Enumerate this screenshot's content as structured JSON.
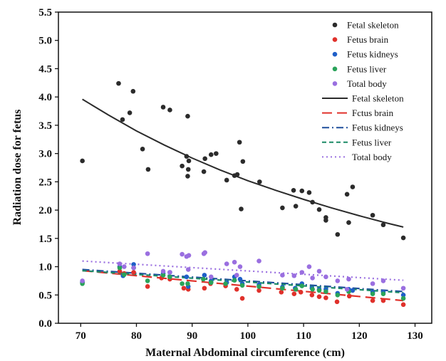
{
  "chart_data": {
    "type": "scatter",
    "xlabel": "Maternal Abdominal circumference (cm)",
    "ylabel": "Radiation dose for fetus",
    "xlim": [
      66,
      133
    ],
    "ylim": [
      0,
      5.5
    ],
    "xticks": [
      70,
      80,
      90,
      100,
      110,
      120,
      130
    ],
    "yticks": [
      0.0,
      0.5,
      1.0,
      1.5,
      2.0,
      2.5,
      3.0,
      3.5,
      4.0,
      4.5,
      5.0,
      5.5
    ],
    "legend_position": "top-right",
    "grid": false,
    "series": [
      {
        "name": "Fetal skeleton",
        "kind": "scatter",
        "color": "#2b2b2b",
        "points": [
          [
            70.3,
            2.87
          ],
          [
            76.8,
            4.24
          ],
          [
            77.5,
            3.6
          ],
          [
            78.8,
            3.72
          ],
          [
            79.4,
            4.1
          ],
          [
            81.1,
            3.08
          ],
          [
            82.1,
            2.72
          ],
          [
            84.8,
            3.82
          ],
          [
            86.0,
            3.77
          ],
          [
            88.2,
            2.78
          ],
          [
            89.0,
            2.95
          ],
          [
            89.2,
            2.6
          ],
          [
            89.2,
            3.66
          ],
          [
            89.3,
            2.72
          ],
          [
            89.4,
            2.87
          ],
          [
            92.1,
            2.68
          ],
          [
            92.3,
            2.91
          ],
          [
            93.4,
            2.98
          ],
          [
            94.3,
            3.0
          ],
          [
            96.2,
            2.53
          ],
          [
            97.6,
            2.61
          ],
          [
            98.1,
            2.63
          ],
          [
            98.5,
            3.2
          ],
          [
            98.8,
            2.02
          ],
          [
            99.1,
            2.86
          ],
          [
            102.1,
            2.5
          ],
          [
            106.2,
            2.04
          ],
          [
            108.2,
            2.35
          ],
          [
            108.6,
            2.07
          ],
          [
            109.7,
            2.34
          ],
          [
            111.0,
            2.31
          ],
          [
            111.6,
            2.14
          ],
          [
            112.8,
            2.01
          ],
          [
            114.0,
            1.87
          ],
          [
            114.0,
            1.82
          ],
          [
            116.1,
            1.57
          ],
          [
            117.8,
            2.28
          ],
          [
            118.1,
            1.78
          ],
          [
            118.8,
            2.41
          ],
          [
            122.4,
            1.91
          ],
          [
            124.3,
            1.74
          ],
          [
            127.9,
            1.51
          ]
        ]
      },
      {
        "name": "Fetus brain",
        "kind": "scatter",
        "color": "#e0312b",
        "points": [
          [
            70.3,
            0.72
          ],
          [
            77.0,
            0.92
          ],
          [
            77.8,
            0.88
          ],
          [
            79.5,
            0.9
          ],
          [
            82.0,
            0.65
          ],
          [
            84.5,
            0.8
          ],
          [
            86.0,
            0.78
          ],
          [
            88.5,
            0.62
          ],
          [
            89.3,
            0.6
          ],
          [
            92.2,
            0.62
          ],
          [
            93.3,
            0.7
          ],
          [
            96.0,
            0.66
          ],
          [
            98.0,
            0.6
          ],
          [
            99.0,
            0.44
          ],
          [
            102.0,
            0.58
          ],
          [
            106.0,
            0.55
          ],
          [
            108.3,
            0.52
          ],
          [
            109.5,
            0.55
          ],
          [
            111.5,
            0.5
          ],
          [
            112.8,
            0.47
          ],
          [
            114.0,
            0.45
          ],
          [
            116.0,
            0.38
          ],
          [
            118.2,
            0.48
          ],
          [
            122.4,
            0.4
          ],
          [
            124.3,
            0.4
          ],
          [
            127.9,
            0.33
          ]
        ]
      },
      {
        "name": "Fetus kidneys",
        "kind": "scatter",
        "color": "#1f5fc8",
        "points": [
          [
            70.3,
            0.73
          ],
          [
            77.0,
            1.0
          ],
          [
            77.6,
            0.84
          ],
          [
            79.5,
            1.04
          ],
          [
            84.8,
            0.88
          ],
          [
            86.0,
            0.9
          ],
          [
            89.0,
            0.82
          ],
          [
            89.3,
            0.65
          ],
          [
            92.2,
            0.85
          ],
          [
            93.4,
            0.75
          ],
          [
            96.2,
            0.72
          ],
          [
            97.6,
            0.82
          ],
          [
            98.6,
            0.78
          ],
          [
            99.0,
            0.7
          ],
          [
            102.0,
            0.68
          ],
          [
            106.2,
            0.64
          ],
          [
            108.5,
            0.62
          ],
          [
            109.7,
            0.7
          ],
          [
            111.5,
            0.62
          ],
          [
            112.8,
            0.6
          ],
          [
            114.0,
            0.6
          ],
          [
            116.1,
            0.53
          ],
          [
            118.1,
            0.6
          ],
          [
            118.8,
            0.58
          ],
          [
            122.4,
            0.55
          ],
          [
            124.3,
            0.55
          ],
          [
            127.9,
            0.5
          ]
        ]
      },
      {
        "name": "Fetus liver",
        "kind": "scatter",
        "color": "#2aa35a",
        "points": [
          [
            70.3,
            0.7
          ],
          [
            77.0,
            0.98
          ],
          [
            77.8,
            0.86
          ],
          [
            79.5,
            0.98
          ],
          [
            82.0,
            0.75
          ],
          [
            84.8,
            0.85
          ],
          [
            86.0,
            0.82
          ],
          [
            88.2,
            0.7
          ],
          [
            89.2,
            0.7
          ],
          [
            92.0,
            0.78
          ],
          [
            93.4,
            0.72
          ],
          [
            96.0,
            0.7
          ],
          [
            97.6,
            0.76
          ],
          [
            99.0,
            0.67
          ],
          [
            102.0,
            0.65
          ],
          [
            106.2,
            0.62
          ],
          [
            108.6,
            0.6
          ],
          [
            109.7,
            0.66
          ],
          [
            111.6,
            0.6
          ],
          [
            112.8,
            0.58
          ],
          [
            114.0,
            0.56
          ],
          [
            116.1,
            0.5
          ],
          [
            118.1,
            0.56
          ],
          [
            122.4,
            0.52
          ],
          [
            124.3,
            0.52
          ],
          [
            127.9,
            0.44
          ]
        ]
      },
      {
        "name": "Total body",
        "kind": "scatter",
        "color": "#9a6fe0",
        "points": [
          [
            70.3,
            0.75
          ],
          [
            77.0,
            1.05
          ],
          [
            77.8,
            1.0
          ],
          [
            79.5,
            0.98
          ],
          [
            82.0,
            1.23
          ],
          [
            84.8,
            0.92
          ],
          [
            86.0,
            0.9
          ],
          [
            88.2,
            1.22
          ],
          [
            89.0,
            1.18
          ],
          [
            89.4,
            1.2
          ],
          [
            89.3,
            0.95
          ],
          [
            92.1,
            1.23
          ],
          [
            92.3,
            1.25
          ],
          [
            93.4,
            0.82
          ],
          [
            96.2,
            1.05
          ],
          [
            97.6,
            1.08
          ],
          [
            98.0,
            0.85
          ],
          [
            98.6,
            1.0
          ],
          [
            102.0,
            1.1
          ],
          [
            106.2,
            0.85
          ],
          [
            108.3,
            0.84
          ],
          [
            109.7,
            0.9
          ],
          [
            111.0,
            1.0
          ],
          [
            111.6,
            0.8
          ],
          [
            112.8,
            0.92
          ],
          [
            114.0,
            0.82
          ],
          [
            116.1,
            0.75
          ],
          [
            117.8,
            0.6
          ],
          [
            118.1,
            0.78
          ],
          [
            122.4,
            0.7
          ],
          [
            124.3,
            0.75
          ],
          [
            127.9,
            0.62
          ]
        ]
      },
      {
        "name": "Fetal skeleton",
        "kind": "fit",
        "color": "#2b2b2b",
        "dash": "solid",
        "x": [
          70.3,
          75,
          80,
          85,
          90,
          95,
          100,
          105,
          110,
          115,
          120,
          125,
          127.9
        ],
        "y": [
          3.96,
          3.68,
          3.4,
          3.15,
          2.92,
          2.71,
          2.52,
          2.35,
          2.19,
          2.04,
          1.9,
          1.77,
          1.7
        ]
      },
      {
        "name": "Fctus brain",
        "kind": "fit",
        "color": "#e0312b",
        "dash": "long",
        "x": [
          70.3,
          127.9
        ],
        "y": [
          0.93,
          0.4
        ]
      },
      {
        "name": "Fetus kidneys",
        "kind": "fit",
        "color": "#1f4e9c",
        "dash": "dashdot",
        "x": [
          70.3,
          127.9
        ],
        "y": [
          0.95,
          0.56
        ]
      },
      {
        "name": "Fetus liver",
        "kind": "fit",
        "color": "#1b8a66",
        "dash": "short",
        "x": [
          70.3,
          127.9
        ],
        "y": [
          0.93,
          0.54
        ]
      },
      {
        "name": "Total body",
        "kind": "fit",
        "color": "#9a6fe0",
        "dash": "dot",
        "x": [
          70.3,
          127.9
        ],
        "y": [
          1.1,
          0.76
        ]
      }
    ]
  }
}
